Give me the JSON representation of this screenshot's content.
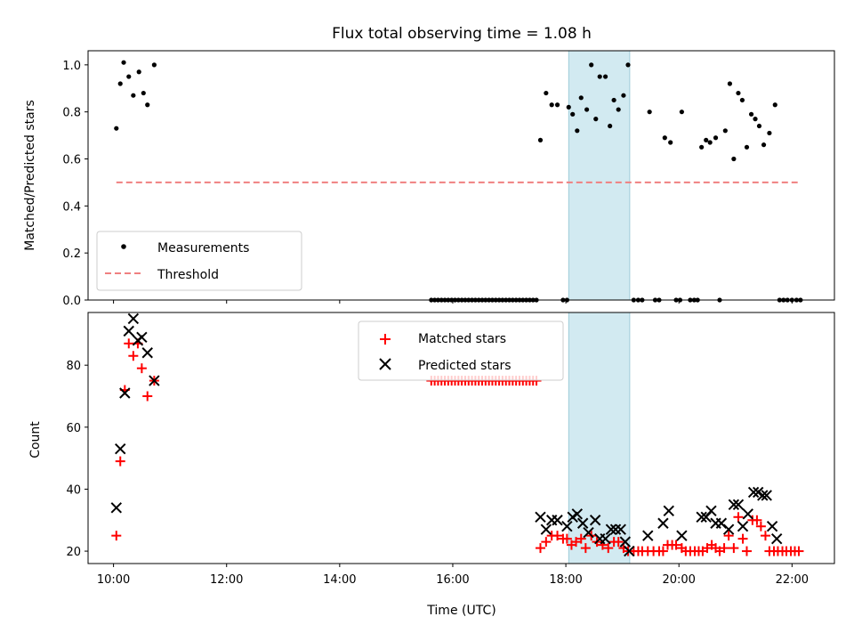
{
  "figure": {
    "title": "Flux total observing time = 1.08 h"
  },
  "chart_data": [
    {
      "type": "scatter",
      "ylabel": "Matched/Predicted stars",
      "xlabel": "",
      "xlim": [
        9.55,
        22.75
      ],
      "ylim": [
        0.0,
        1.06
      ],
      "yticks": [
        0.0,
        0.2,
        0.4,
        0.6,
        0.8,
        1.0
      ],
      "ytick_labels": [
        "0.0",
        "0.2",
        "0.4",
        "0.6",
        "0.8",
        "1.0"
      ],
      "xticks": [
        10,
        12,
        14,
        16,
        18,
        20,
        22
      ],
      "legend": {
        "placement": "lower-left"
      },
      "shaded_region": {
        "x0": 18.05,
        "x1": 19.13,
        "color": "#add8e6"
      },
      "threshold": {
        "name": "Threshold",
        "value": 0.5,
        "x0": 10.05,
        "x1": 22.1,
        "color": "#f08080"
      },
      "series": [
        {
          "name": "Measurements",
          "color": "#000000",
          "marker": "dot",
          "points": [
            [
              10.05,
              0.73
            ],
            [
              10.12,
              0.92
            ],
            [
              10.18,
              1.01
            ],
            [
              10.27,
              0.95
            ],
            [
              10.35,
              0.87
            ],
            [
              10.45,
              0.97
            ],
            [
              10.53,
              0.88
            ],
            [
              10.6,
              0.83
            ],
            [
              10.72,
              1.0
            ],
            [
              15.62,
              0.0
            ],
            [
              15.68,
              0.0
            ],
            [
              15.74,
              0.0
            ],
            [
              15.8,
              0.0
            ],
            [
              15.86,
              0.0
            ],
            [
              15.92,
              0.0
            ],
            [
              15.98,
              0.0
            ],
            [
              16.04,
              0.0
            ],
            [
              16.1,
              0.0
            ],
            [
              16.16,
              0.0
            ],
            [
              16.22,
              0.0
            ],
            [
              16.28,
              0.0
            ],
            [
              16.34,
              0.0
            ],
            [
              16.4,
              0.0
            ],
            [
              16.46,
              0.0
            ],
            [
              16.52,
              0.0
            ],
            [
              16.58,
              0.0
            ],
            [
              16.64,
              0.0
            ],
            [
              16.7,
              0.0
            ],
            [
              16.76,
              0.0
            ],
            [
              16.82,
              0.0
            ],
            [
              16.88,
              0.0
            ],
            [
              16.94,
              0.0
            ],
            [
              17.0,
              0.0
            ],
            [
              17.06,
              0.0
            ],
            [
              17.12,
              0.0
            ],
            [
              17.18,
              0.0
            ],
            [
              17.24,
              0.0
            ],
            [
              17.3,
              0.0
            ],
            [
              17.36,
              0.0
            ],
            [
              17.42,
              0.0
            ],
            [
              17.48,
              0.0
            ],
            [
              17.55,
              0.68
            ],
            [
              17.65,
              0.88
            ],
            [
              17.75,
              0.83
            ],
            [
              17.85,
              0.83
            ],
            [
              17.95,
              0.0
            ],
            [
              18.02,
              0.0
            ],
            [
              18.05,
              0.82
            ],
            [
              18.12,
              0.79
            ],
            [
              18.2,
              0.72
            ],
            [
              18.27,
              0.86
            ],
            [
              18.37,
              0.81
            ],
            [
              18.45,
              1.0
            ],
            [
              18.53,
              0.77
            ],
            [
              18.6,
              0.95
            ],
            [
              18.7,
              0.95
            ],
            [
              18.78,
              0.74
            ],
            [
              18.85,
              0.85
            ],
            [
              18.93,
              0.81
            ],
            [
              19.02,
              0.87
            ],
            [
              19.1,
              1.0
            ],
            [
              19.2,
              0.0
            ],
            [
              19.28,
              0.0
            ],
            [
              19.35,
              0.0
            ],
            [
              19.48,
              0.8
            ],
            [
              19.58,
              0.0
            ],
            [
              19.65,
              0.0
            ],
            [
              19.75,
              0.69
            ],
            [
              19.85,
              0.67
            ],
            [
              19.95,
              0.0
            ],
            [
              20.02,
              0.0
            ],
            [
              20.05,
              0.8
            ],
            [
              20.2,
              0.0
            ],
            [
              20.27,
              0.0
            ],
            [
              20.33,
              0.0
            ],
            [
              20.4,
              0.65
            ],
            [
              20.48,
              0.68
            ],
            [
              20.55,
              0.67
            ],
            [
              20.65,
              0.69
            ],
            [
              20.72,
              0.0
            ],
            [
              20.82,
              0.72
            ],
            [
              20.9,
              0.92
            ],
            [
              20.97,
              0.6
            ],
            [
              21.05,
              0.88
            ],
            [
              21.12,
              0.85
            ],
            [
              21.2,
              0.65
            ],
            [
              21.28,
              0.79
            ],
            [
              21.35,
              0.77
            ],
            [
              21.42,
              0.74
            ],
            [
              21.5,
              0.66
            ],
            [
              21.6,
              0.71
            ],
            [
              21.7,
              0.83
            ],
            [
              21.78,
              0.0
            ],
            [
              21.85,
              0.0
            ],
            [
              21.92,
              0.0
            ],
            [
              22.0,
              0.0
            ],
            [
              22.08,
              0.0
            ],
            [
              22.15,
              0.0
            ]
          ]
        }
      ]
    },
    {
      "type": "scatter",
      "ylabel": "Count",
      "xlabel": "Time (UTC)",
      "xlim": [
        9.55,
        22.75
      ],
      "ylim": [
        16,
        97
      ],
      "yticks": [
        20,
        40,
        60,
        80
      ],
      "ytick_labels": [
        "20",
        "40",
        "60",
        "80"
      ],
      "xticks": [
        10,
        12,
        14,
        16,
        18,
        20,
        22
      ],
      "xtick_labels": [
        "10:00",
        "12:00",
        "14:00",
        "16:00",
        "18:00",
        "20:00",
        "22:00"
      ],
      "legend": {
        "placement": "upper-center"
      },
      "shaded_region": {
        "x0": 18.05,
        "x1": 19.13,
        "color": "#add8e6"
      },
      "series": [
        {
          "name": "Matched stars",
          "color": "#ff0000",
          "marker": "plus",
          "points": [
            [
              10.05,
              25
            ],
            [
              10.12,
              49
            ],
            [
              10.2,
              72
            ],
            [
              10.27,
              87
            ],
            [
              10.35,
              83
            ],
            [
              10.43,
              87
            ],
            [
              10.5,
              79
            ],
            [
              10.6,
              70
            ],
            [
              10.72,
              75
            ],
            [
              15.62,
              75
            ],
            [
              15.68,
              75
            ],
            [
              15.74,
              75
            ],
            [
              15.8,
              75
            ],
            [
              15.86,
              75
            ],
            [
              15.92,
              75
            ],
            [
              15.98,
              75
            ],
            [
              16.04,
              75
            ],
            [
              16.1,
              75
            ],
            [
              16.16,
              75
            ],
            [
              16.22,
              75
            ],
            [
              16.28,
              75
            ],
            [
              16.34,
              75
            ],
            [
              16.4,
              75
            ],
            [
              16.46,
              75
            ],
            [
              16.52,
              75
            ],
            [
              16.58,
              75
            ],
            [
              16.64,
              75
            ],
            [
              16.7,
              75
            ],
            [
              16.76,
              75
            ],
            [
              16.82,
              75
            ],
            [
              16.88,
              75
            ],
            [
              16.94,
              75
            ],
            [
              17.0,
              75
            ],
            [
              17.06,
              75
            ],
            [
              17.12,
              75
            ],
            [
              17.18,
              75
            ],
            [
              17.24,
              75
            ],
            [
              17.3,
              75
            ],
            [
              17.36,
              75
            ],
            [
              17.42,
              75
            ],
            [
              17.48,
              75
            ],
            [
              17.55,
              21
            ],
            [
              17.65,
              23
            ],
            [
              17.75,
              25
            ],
            [
              17.85,
              25
            ],
            [
              17.95,
              24
            ],
            [
              18.02,
              24
            ],
            [
              18.1,
              22
            ],
            [
              18.18,
              23
            ],
            [
              18.27,
              24
            ],
            [
              18.35,
              21
            ],
            [
              18.45,
              25
            ],
            [
              18.55,
              23
            ],
            [
              18.65,
              22
            ],
            [
              18.75,
              21
            ],
            [
              18.85,
              23
            ],
            [
              18.93,
              23
            ],
            [
              19.02,
              21
            ],
            [
              19.1,
              20
            ],
            [
              19.2,
              20
            ],
            [
              19.28,
              20
            ],
            [
              19.35,
              20
            ],
            [
              19.45,
              20
            ],
            [
              19.55,
              20
            ],
            [
              19.65,
              20
            ],
            [
              19.72,
              20
            ],
            [
              19.8,
              22
            ],
            [
              19.88,
              22
            ],
            [
              19.95,
              22
            ],
            [
              20.05,
              21
            ],
            [
              20.12,
              20
            ],
            [
              20.2,
              20
            ],
            [
              20.28,
              20
            ],
            [
              20.35,
              20
            ],
            [
              20.42,
              20
            ],
            [
              20.5,
              21
            ],
            [
              20.58,
              22
            ],
            [
              20.65,
              21
            ],
            [
              20.72,
              20
            ],
            [
              20.8,
              21
            ],
            [
              20.88,
              25
            ],
            [
              20.97,
              21
            ],
            [
              21.05,
              31
            ],
            [
              21.13,
              24
            ],
            [
              21.2,
              20
            ],
            [
              21.3,
              30
            ],
            [
              21.38,
              30
            ],
            [
              21.45,
              28
            ],
            [
              21.53,
              25
            ],
            [
              21.6,
              20
            ],
            [
              21.68,
              20
            ],
            [
              21.75,
              20
            ],
            [
              21.83,
              20
            ],
            [
              21.9,
              20
            ],
            [
              21.98,
              20
            ],
            [
              22.05,
              20
            ],
            [
              22.12,
              20
            ]
          ]
        },
        {
          "name": "Predicted stars",
          "color": "#000000",
          "marker": "x",
          "points": [
            [
              10.05,
              34
            ],
            [
              10.12,
              53
            ],
            [
              10.2,
              71
            ],
            [
              10.27,
              91
            ],
            [
              10.35,
              95
            ],
            [
              10.43,
              88
            ],
            [
              10.5,
              89
            ],
            [
              10.6,
              84
            ],
            [
              10.72,
              75
            ],
            [
              17.55,
              31
            ],
            [
              17.65,
              27
            ],
            [
              17.75,
              30
            ],
            [
              17.85,
              30
            ],
            [
              18.02,
              28
            ],
            [
              18.12,
              31
            ],
            [
              18.2,
              32
            ],
            [
              18.3,
              29
            ],
            [
              18.4,
              26
            ],
            [
              18.52,
              30
            ],
            [
              18.6,
              24
            ],
            [
              18.7,
              24
            ],
            [
              18.8,
              27
            ],
            [
              18.88,
              27
            ],
            [
              18.97,
              27
            ],
            [
              19.05,
              23
            ],
            [
              19.12,
              20
            ],
            [
              19.45,
              25
            ],
            [
              19.72,
              29
            ],
            [
              19.82,
              33
            ],
            [
              20.05,
              25
            ],
            [
              20.4,
              31
            ],
            [
              20.48,
              31
            ],
            [
              20.57,
              33
            ],
            [
              20.65,
              29
            ],
            [
              20.75,
              29
            ],
            [
              20.88,
              27
            ],
            [
              20.97,
              35
            ],
            [
              21.05,
              35
            ],
            [
              21.13,
              28
            ],
            [
              21.22,
              32
            ],
            [
              21.32,
              39
            ],
            [
              21.4,
              39
            ],
            [
              21.48,
              38
            ],
            [
              21.55,
              38
            ],
            [
              21.65,
              28
            ],
            [
              21.73,
              24
            ]
          ]
        }
      ]
    }
  ]
}
